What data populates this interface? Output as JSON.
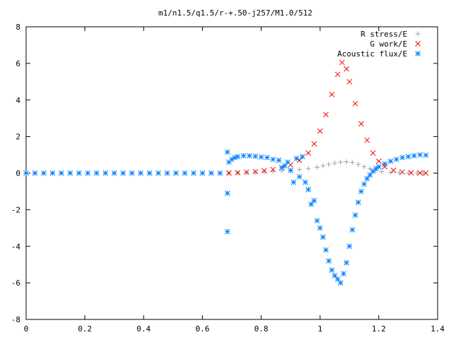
{
  "chart_data": {
    "type": "scatter",
    "title": "m1/n1.5/q1.5/r-+.50-j257/M1.0/512",
    "xlabel": "",
    "ylabel": "",
    "xlim": [
      0,
      1.4
    ],
    "ylim": [
      -8,
      8
    ],
    "x_ticks": [
      0,
      0.2,
      0.4,
      0.6,
      0.8,
      1,
      1.2,
      1.4
    ],
    "x_tick_labels": [
      "0",
      "0.2",
      "0.4",
      "0.6",
      "0.8",
      "1",
      "1.2",
      "1.4"
    ],
    "y_ticks": [
      -8,
      -6,
      -4,
      -2,
      0,
      2,
      4,
      6,
      8
    ],
    "y_tick_labels": [
      "-8",
      "-6",
      "-4",
      "-2",
      "0",
      "2",
      "4",
      "6",
      "8"
    ],
    "grid": false,
    "legend_position": "top-right",
    "series": [
      {
        "name": "R stress/E",
        "marker": "plus",
        "color": "#a0a0a0",
        "x": [
          0.69,
          0.72,
          0.75,
          0.78,
          0.81,
          0.84,
          0.87,
          0.9,
          0.93,
          0.96,
          0.99,
          1.01,
          1.03,
          1.05,
          1.07,
          1.09,
          1.11,
          1.13,
          1.15,
          1.17,
          1.19,
          1.21,
          1.24,
          1.27,
          1.3,
          1.33,
          1.35
        ],
        "y": [
          0.0,
          0.02,
          0.03,
          0.05,
          0.08,
          0.1,
          0.13,
          0.16,
          0.2,
          0.25,
          0.32,
          0.4,
          0.48,
          0.55,
          0.6,
          0.62,
          0.58,
          0.48,
          0.35,
          0.24,
          0.15,
          0.08,
          0.04,
          0.02,
          0.01,
          0.0,
          0.0
        ]
      },
      {
        "name": "G work/E",
        "marker": "cross",
        "color": "#ff0000",
        "x": [
          0.69,
          0.72,
          0.75,
          0.78,
          0.81,
          0.84,
          0.87,
          0.9,
          0.93,
          0.96,
          0.98,
          1.0,
          1.02,
          1.04,
          1.06,
          1.075,
          1.09,
          1.1,
          1.12,
          1.14,
          1.16,
          1.18,
          1.2,
          1.22,
          1.25,
          1.28,
          1.31,
          1.34,
          1.36
        ],
        "y": [
          0.0,
          0.02,
          0.05,
          0.08,
          0.13,
          0.2,
          0.3,
          0.45,
          0.7,
          1.1,
          1.6,
          2.3,
          3.2,
          4.3,
          5.4,
          6.05,
          5.7,
          5.0,
          3.8,
          2.7,
          1.8,
          1.1,
          0.65,
          0.35,
          0.15,
          0.06,
          0.02,
          0.01,
          0.0
        ]
      },
      {
        "name": "Acoustic flux/E",
        "marker": "asterisk",
        "color": "#0080ff",
        "x": [
          0.0,
          0.03,
          0.06,
          0.09,
          0.12,
          0.15,
          0.18,
          0.21,
          0.24,
          0.27,
          0.3,
          0.33,
          0.36,
          0.39,
          0.42,
          0.45,
          0.48,
          0.51,
          0.54,
          0.57,
          0.6,
          0.63,
          0.66,
          0.685,
          0.685,
          0.685,
          0.69,
          0.7,
          0.71,
          0.72,
          0.74,
          0.76,
          0.78,
          0.8,
          0.82,
          0.84,
          0.86,
          0.87,
          0.88,
          0.89,
          0.9,
          0.91,
          0.92,
          0.93,
          0.94,
          0.95,
          0.96,
          0.97,
          0.98,
          0.99,
          1.0,
          1.01,
          1.02,
          1.03,
          1.04,
          1.05,
          1.06,
          1.07,
          1.08,
          1.09,
          1.1,
          1.11,
          1.12,
          1.13,
          1.14,
          1.15,
          1.16,
          1.17,
          1.18,
          1.19,
          1.2,
          1.22,
          1.24,
          1.26,
          1.28,
          1.3,
          1.32,
          1.34,
          1.36
        ],
        "y": [
          0.0,
          0.0,
          0.0,
          0.0,
          0.0,
          0.0,
          0.0,
          0.0,
          0.0,
          0.0,
          0.0,
          0.0,
          0.0,
          0.0,
          0.0,
          0.0,
          0.0,
          0.0,
          0.0,
          0.0,
          0.0,
          0.0,
          0.0,
          1.15,
          -1.1,
          -3.2,
          0.6,
          0.75,
          0.85,
          0.9,
          0.95,
          0.95,
          0.92,
          0.88,
          0.85,
          0.75,
          0.7,
          0.3,
          0.4,
          0.6,
          0.15,
          -0.5,
          0.8,
          -0.2,
          0.9,
          -0.5,
          -0.9,
          -1.7,
          -1.5,
          -2.6,
          -3.0,
          -3.5,
          -4.2,
          -4.8,
          -5.3,
          -5.6,
          -5.8,
          -6.0,
          -5.5,
          -4.9,
          -4.0,
          -3.1,
          -2.3,
          -1.6,
          -1.0,
          -0.6,
          -0.3,
          -0.1,
          0.1,
          0.25,
          0.35,
          0.5,
          0.65,
          0.75,
          0.85,
          0.9,
          0.95,
          1.0,
          0.98
        ]
      }
    ]
  }
}
